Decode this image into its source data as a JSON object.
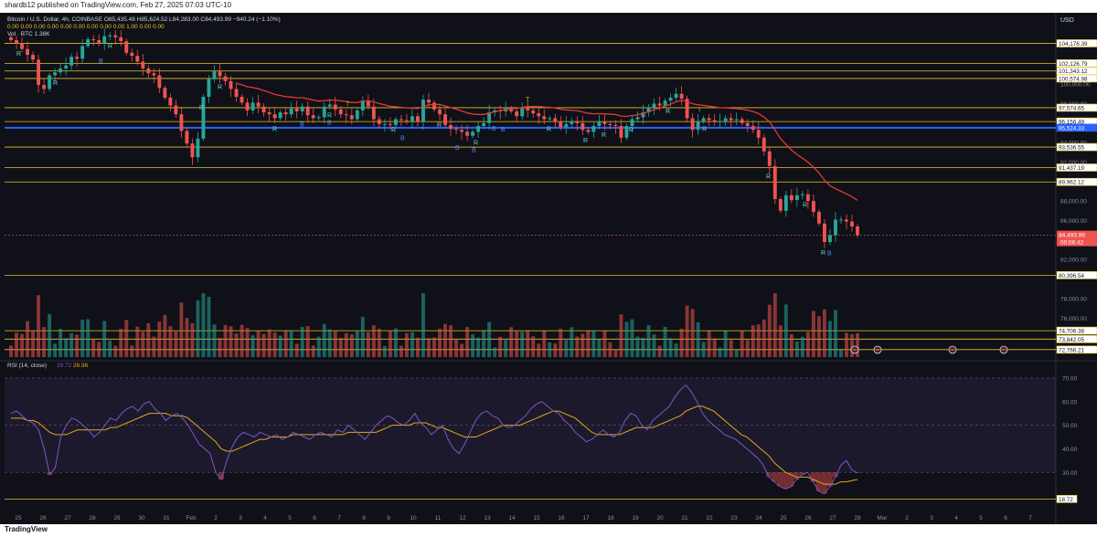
{
  "header": {
    "published": "shardb12 published on TradingView.com, Feb 27, 2025 07:03 UTC-10"
  },
  "footer": {
    "brand": "TradingView"
  },
  "colors": {
    "up": "#26a69a",
    "down": "#ef5350",
    "level": "#e6c229",
    "blue_level": "#2962ff",
    "ema": "#e53935",
    "rsi": "#7e57c2",
    "rsi_ma": "#e6a817"
  },
  "legend": {
    "symbol_line": "Bitcoin / U.S. Dollar, 4h, COINBASE O85,435.48 H85,624.52 L84,283.00 C84,493.99 −940.24 (−1.10%)",
    "indicator_line": "0.00 0.00 0.00 0.00 0.00 0.00 0.00 0.00 0.00 1.00 0.00 0.00",
    "vol_line": "Vol · BTC 1.38K"
  },
  "currency": "USD",
  "chart_data": [
    {
      "type": "candlestick",
      "title": "Bitcoin / U.S. Dollar, 4h, COINBASE",
      "price_axis_labels": [
        "104,000.00",
        "100,000.00",
        "98,000.00",
        "96,000.00",
        "94,000.00",
        "92,000.00",
        "88,000.00",
        "86,000.00",
        "82,000.00",
        "78,000.00",
        "76,000.00"
      ],
      "ylim": [
        72000,
        106000
      ],
      "level_lines": [
        {
          "value": 104178.39,
          "label": "104,178.39"
        },
        {
          "value": 102126.79,
          "label": "102,126.79"
        },
        {
          "value": 101343.12,
          "label": "101,343.12"
        },
        {
          "value": 100574.98,
          "label": "100,574.98"
        },
        {
          "value": 97574.65,
          "label": "97,574.65"
        },
        {
          "value": 96156.49,
          "label": "96,156.49"
        },
        {
          "value": 95524.33,
          "label": "95,524.33",
          "color": "blue"
        },
        {
          "value": 93536.55,
          "label": "93,536.55"
        },
        {
          "value": 91437.19,
          "label": "91,437.19"
        },
        {
          "value": 89962.12,
          "label": "89,962.12"
        },
        {
          "value": 80396.54,
          "label": "80,396.54"
        },
        {
          "value": 74706.38,
          "label": "74,706.38"
        },
        {
          "value": 73842.05,
          "label": "73,842.05"
        },
        {
          "value": 72766.21,
          "label": "72,766.21"
        }
      ],
      "last_price": {
        "value": 84493.99,
        "label": "84,493.99",
        "countdown": "00:56:42"
      },
      "x_tick_labels": [
        "25",
        "26",
        "27",
        "28",
        "29",
        "30",
        "31",
        "Feb",
        "2",
        "3",
        "4",
        "5",
        "6",
        "7",
        "8",
        "9",
        "10",
        "11",
        "12",
        "13",
        "14",
        "15",
        "16",
        "17",
        "18",
        "19",
        "20",
        "21",
        "22",
        "23",
        "24",
        "25",
        "26",
        "27",
        "28",
        "Mar",
        "2",
        "3",
        "4",
        "5",
        "6",
        "7"
      ],
      "close_series": [
        104500,
        104200,
        103600,
        103000,
        102500,
        99900,
        99500,
        100900,
        101200,
        101600,
        101900,
        102800,
        102600,
        103900,
        104600,
        104500,
        104200,
        104900,
        105000,
        104800,
        104400,
        103200,
        102900,
        102300,
        101600,
        101100,
        100900,
        99600,
        98600,
        97800,
        96900,
        95200,
        93900,
        92500,
        94400,
        98700,
        100500,
        101300,
        100800,
        100300,
        99500,
        98700,
        98100,
        97300,
        98100,
        97700,
        97100,
        96900,
        96500,
        97100,
        96900,
        97500,
        97200,
        97700,
        96800,
        96500,
        96600,
        97700,
        97900,
        97400,
        96900,
        96800,
        96400,
        97300,
        98300,
        97700,
        96400,
        95900,
        95900,
        95800,
        96400,
        96300,
        96200,
        96700,
        96100,
        98400,
        98100,
        97400,
        96900,
        95800,
        95400,
        95300,
        95100,
        94700,
        95100,
        95700,
        96000,
        97100,
        97300,
        97200,
        97500,
        97200,
        96700,
        97500,
        97300,
        97000,
        96700,
        96400,
        96500,
        96100,
        95600,
        95900,
        96200,
        96000,
        95300,
        95100,
        95700,
        96200,
        95900,
        95800,
        95700,
        94500,
        95700,
        96400,
        96600,
        97100,
        97600,
        98000,
        97800,
        98300,
        98600,
        99000,
        98500,
        96500,
        95300,
        96200,
        96500,
        96300,
        96100,
        96200,
        96500,
        96300,
        96400,
        96000,
        95700,
        95300,
        94500,
        93100,
        91600,
        88200,
        87000,
        88600,
        88100,
        88600,
        88700,
        88000,
        86900,
        85700,
        83800,
        84500,
        86100,
        86100,
        85900,
        85400,
        84494
      ]
    },
    {
      "type": "bar",
      "title": "Vol · BTC",
      "value_label": "1.38K"
    },
    {
      "type": "line",
      "title": "RSI (14, close)",
      "legend": [
        {
          "label": "RSI (14, close)"
        },
        {
          "label": "29.72",
          "color": "#7e57c2"
        },
        {
          "label": "26.96",
          "color": "#e6a817"
        }
      ],
      "ylim": [
        15,
        75
      ],
      "axis_labels": [
        "70.00",
        "60.00",
        "50.00",
        "40.00",
        "30.00"
      ],
      "axis_values": [
        70,
        60,
        50,
        40,
        30
      ],
      "band_lines": [
        70,
        50,
        30
      ],
      "marker": {
        "value": 18.72,
        "label": "18.72"
      },
      "rsi": [
        55,
        56,
        54,
        52,
        51,
        48,
        40,
        29,
        32,
        45,
        50,
        53,
        52,
        50,
        48,
        45,
        47,
        50,
        53,
        52,
        55,
        57,
        58,
        56,
        59,
        60,
        57,
        55,
        52,
        54,
        55,
        53,
        50,
        46,
        42,
        40,
        38,
        30,
        27,
        35,
        41,
        45,
        47,
        46,
        45,
        47,
        46,
        45,
        46,
        44,
        45,
        47,
        46,
        45,
        44,
        46,
        47,
        46,
        45,
        48,
        47,
        50,
        48,
        46,
        44,
        47,
        50,
        52,
        54,
        53,
        51,
        50,
        52,
        55,
        51,
        49,
        46,
        48,
        50,
        44,
        40,
        38,
        42,
        47,
        52,
        55,
        56,
        54,
        53,
        50,
        49,
        50,
        52,
        54,
        57,
        59,
        60,
        58,
        56,
        55,
        52,
        50,
        47,
        45,
        43,
        44,
        46,
        48,
        46,
        45,
        47,
        52,
        55,
        54,
        50,
        48,
        52,
        54,
        56,
        58,
        62,
        65,
        67,
        64,
        60,
        55,
        52,
        50,
        48,
        46,
        45,
        44,
        42,
        40,
        38,
        36,
        33,
        28,
        26,
        24,
        23,
        24,
        27,
        29,
        30,
        26,
        22,
        21,
        24,
        28,
        33,
        35,
        31,
        29.72
      ],
      "rsi_ma": [
        53,
        53,
        53,
        52,
        52,
        51,
        49,
        47,
        46,
        46,
        46,
        47,
        48,
        48,
        48,
        48,
        48,
        48,
        49,
        49,
        50,
        51,
        52,
        53,
        54,
        55,
        55,
        55,
        55,
        54,
        54,
        54,
        53,
        51,
        49,
        47,
        45,
        43,
        40,
        39,
        39,
        40,
        41,
        42,
        43,
        44,
        44,
        45,
        45,
        45,
        45,
        46,
        46,
        46,
        46,
        46,
        46,
        46,
        46,
        46,
        46,
        47,
        47,
        47,
        47,
        47,
        47,
        48,
        49,
        50,
        50,
        50,
        50,
        51,
        51,
        51,
        50,
        49,
        49,
        48,
        47,
        46,
        45,
        45,
        45,
        46,
        47,
        48,
        49,
        50,
        50,
        50,
        50,
        51,
        52,
        53,
        54,
        55,
        56,
        56,
        55,
        54,
        53,
        51,
        49,
        47,
        46,
        46,
        46,
        46,
        46,
        47,
        48,
        49,
        49,
        49,
        49,
        50,
        51,
        52,
        53,
        54,
        56,
        57,
        58,
        58,
        57,
        56,
        54,
        52,
        50,
        48,
        46,
        45,
        43,
        41,
        39,
        37,
        34,
        32,
        30,
        29,
        28,
        28,
        28,
        27,
        26,
        25,
        25,
        25,
        26,
        26,
        26.5,
        26.96
      ]
    }
  ],
  "signals": {
    "R": [
      "R",
      "R",
      "R",
      "R",
      "R",
      "R",
      "R",
      "R",
      "R",
      "R",
      "R",
      "R",
      "R",
      "R",
      "R",
      "R",
      "R",
      "R",
      "R"
    ],
    "B": [
      "B",
      "B",
      "B",
      "B",
      "B",
      "B",
      "B",
      "B",
      "B"
    ],
    "T": [
      "T",
      "T",
      "T"
    ]
  }
}
